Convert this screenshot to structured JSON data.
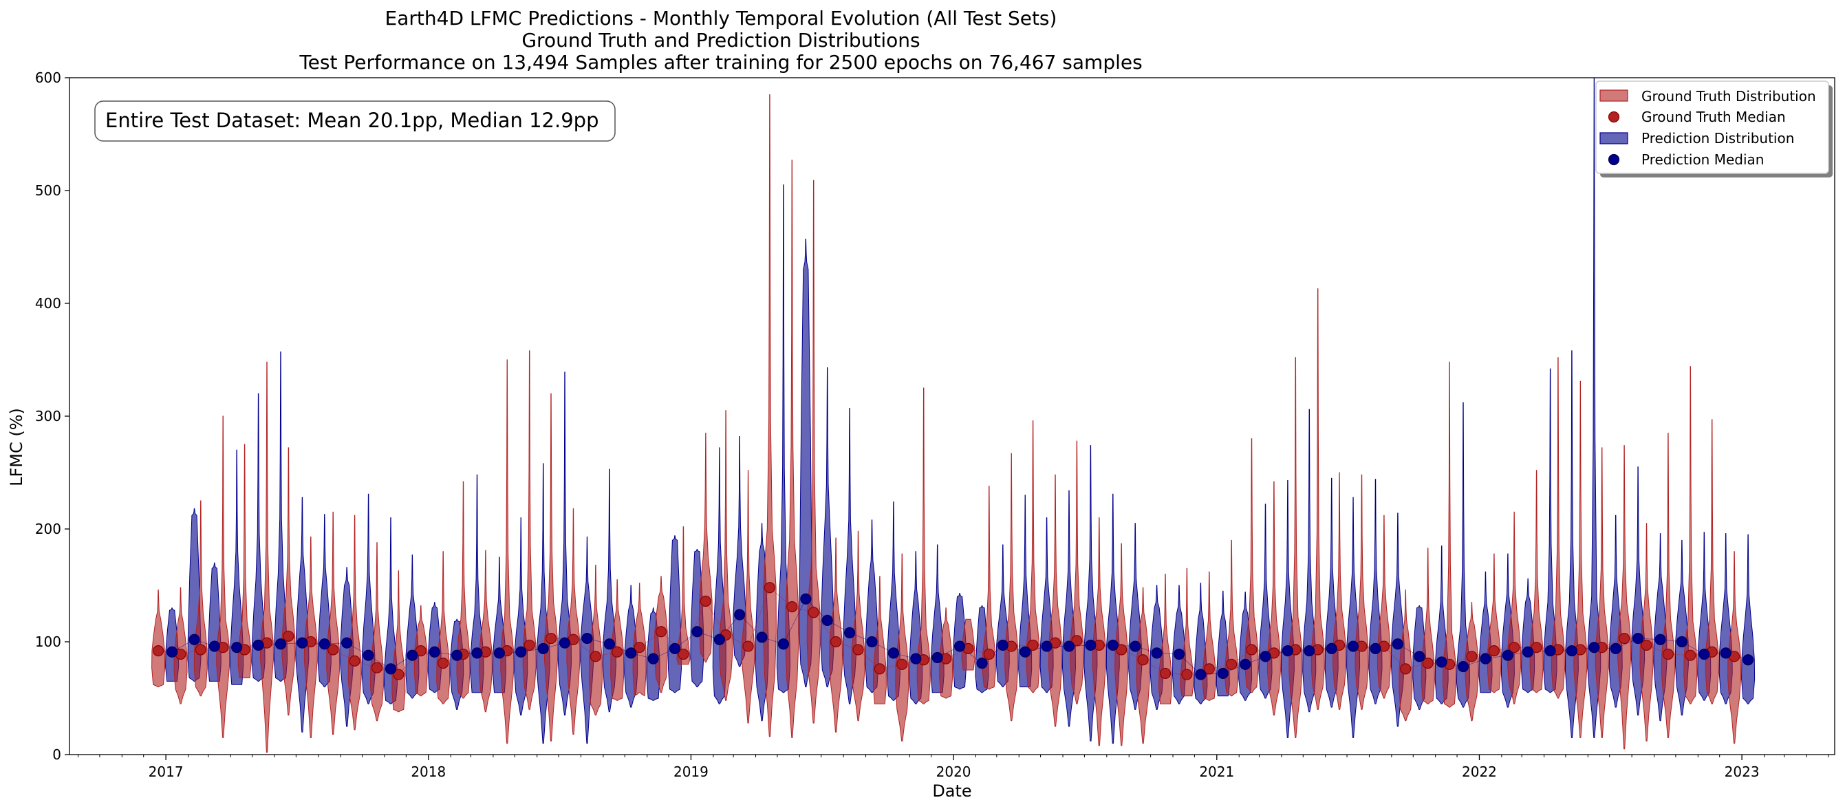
{
  "chart_data": {
    "type": "violin",
    "title": "Earth4D LFMC Predictions - Monthly Temporal Evolution (All Test Sets)",
    "subtitle": "Ground Truth and Prediction Distributions",
    "subtitle2": "Test Performance on 13,494 Samples after training for 2500 epochs on 76,467 samples",
    "xlabel": "Date",
    "ylabel": "LFMC (%)",
    "xlim": [
      "2016-08-20",
      "2023-05-10"
    ],
    "ylim": [
      0,
      600
    ],
    "yticks": [
      0,
      100,
      200,
      300,
      400,
      500,
      600
    ],
    "xticks": [
      "2017",
      "2018",
      "2019",
      "2020",
      "2021",
      "2022",
      "2023"
    ],
    "annotation": "Entire Test Dataset: Mean 20.1pp, Median 12.9pp",
    "legend_position": "top-right",
    "colors": {
      "ground_truth": "#b22222",
      "prediction": "#00008b"
    },
    "legend": [
      {
        "label": "Ground Truth Distribution",
        "kind": "patch",
        "series": "ground_truth"
      },
      {
        "label": "Ground Truth Median",
        "kind": "dot",
        "series": "ground_truth"
      },
      {
        "label": "Prediction Distribution",
        "kind": "patch",
        "series": "prediction"
      },
      {
        "label": "Prediction Median",
        "kind": "dot",
        "series": "prediction"
      }
    ],
    "months": [
      "2017-01",
      "2017-02",
      "2017-03",
      "2017-04",
      "2017-05",
      "2017-06",
      "2017-07",
      "2017-08",
      "2017-09",
      "2017-10",
      "2017-11",
      "2017-12",
      "2018-01",
      "2018-02",
      "2018-03",
      "2018-04",
      "2018-05",
      "2018-06",
      "2018-07",
      "2018-08",
      "2018-09",
      "2018-10",
      "2018-11",
      "2018-12",
      "2019-01",
      "2019-02",
      "2019-03",
      "2019-04",
      "2019-05",
      "2019-06",
      "2019-07",
      "2019-08",
      "2019-09",
      "2019-10",
      "2019-11",
      "2019-12",
      "2020-01",
      "2020-02",
      "2020-03",
      "2020-04",
      "2020-05",
      "2020-06",
      "2020-07",
      "2020-08",
      "2020-09",
      "2020-10",
      "2020-11",
      "2020-12",
      "2021-01",
      "2021-02",
      "2021-03",
      "2021-04",
      "2021-05",
      "2021-06",
      "2021-07",
      "2021-08",
      "2021-09",
      "2021-10",
      "2021-11",
      "2021-12",
      "2022-01",
      "2022-02",
      "2022-03",
      "2022-04",
      "2022-05",
      "2022-06",
      "2022-07",
      "2022-08",
      "2022-09",
      "2022-10",
      "2022-11",
      "2022-12",
      "2023-01"
    ],
    "ground_truth_median": [
      92,
      89,
      93,
      95,
      93,
      99,
      105,
      100,
      93,
      83,
      77,
      71,
      92,
      81,
      89,
      91,
      92,
      97,
      103,
      102,
      87,
      91,
      95,
      109,
      89,
      136,
      106,
      96,
      148,
      131,
      126,
      100,
      93,
      76,
      80,
      84,
      85,
      94,
      89,
      96,
      97,
      99,
      101,
      97,
      93,
      84,
      72,
      71,
      76,
      80,
      93,
      90,
      93,
      93,
      97,
      96,
      96,
      76,
      81,
      80,
      87,
      92,
      95,
      95,
      93,
      93,
      95,
      103,
      97,
      89,
      88,
      91,
      87
    ],
    "ground_truth_q1": [
      62,
      58,
      60,
      65,
      68,
      70,
      72,
      68,
      60,
      52,
      45,
      40,
      55,
      50,
      55,
      57,
      58,
      60,
      65,
      63,
      45,
      50,
      52,
      68,
      80,
      90,
      70,
      72,
      70,
      65,
      72,
      62,
      58,
      45,
      40,
      48,
      52,
      75,
      60,
      58,
      60,
      58,
      62,
      60,
      55,
      48,
      45,
      52,
      50,
      55,
      60,
      58,
      55,
      60,
      62,
      60,
      60,
      40,
      48,
      45,
      52,
      58,
      62,
      58,
      58,
      60,
      62,
      68,
      60,
      55,
      52,
      55,
      50
    ],
    "ground_truth_q3": [
      120,
      118,
      125,
      120,
      118,
      130,
      140,
      130,
      125,
      115,
      110,
      100,
      115,
      110,
      120,
      120,
      122,
      128,
      135,
      130,
      118,
      120,
      122,
      140,
      112,
      175,
      135,
      130,
      200,
      190,
      165,
      130,
      125,
      110,
      110,
      112,
      115,
      120,
      115,
      125,
      128,
      132,
      132,
      128,
      125,
      118,
      100,
      98,
      105,
      108,
      122,
      120,
      122,
      124,
      128,
      130,
      130,
      110,
      112,
      108,
      115,
      122,
      128,
      126,
      125,
      125,
      128,
      135,
      130,
      120,
      118,
      120,
      115
    ],
    "ground_truth_min": [
      60,
      45,
      52,
      15,
      68,
      2,
      35,
      15,
      18,
      22,
      30,
      38,
      52,
      45,
      50,
      38,
      10,
      40,
      12,
      18,
      35,
      48,
      55,
      55,
      80,
      82,
      48,
      28,
      16,
      15,
      28,
      20,
      30,
      45,
      12,
      45,
      50,
      75,
      58,
      30,
      55,
      25,
      45,
      8,
      8,
      10,
      45,
      52,
      48,
      52,
      55,
      35,
      15,
      40,
      40,
      40,
      50,
      30,
      45,
      42,
      30,
      55,
      45,
      55,
      50,
      15,
      15,
      5,
      12,
      15,
      45,
      45,
      10
    ],
    "ground_truth_max": [
      146,
      148,
      225,
      300,
      275,
      348,
      272,
      193,
      215,
      212,
      188,
      163,
      132,
      180,
      242,
      181,
      350,
      358,
      320,
      218,
      168,
      155,
      152,
      158,
      202,
      285,
      305,
      252,
      585,
      527,
      509,
      192,
      198,
      158,
      178,
      325,
      130,
      120,
      238,
      267,
      296,
      248,
      278,
      210,
      187,
      148,
      160,
      165,
      162,
      190,
      280,
      242,
      352,
      413,
      250,
      248,
      212,
      146,
      183,
      348,
      135,
      178,
      215,
      252,
      352,
      331,
      272,
      274,
      205,
      285,
      344,
      297,
      180
    ],
    "prediction_median": [
      91,
      102,
      96,
      95,
      97,
      98,
      99,
      98,
      99,
      88,
      76,
      88,
      91,
      88,
      90,
      90,
      91,
      94,
      99,
      103,
      98,
      90,
      85,
      94,
      109,
      102,
      124,
      104,
      98,
      138,
      119,
      108,
      100,
      90,
      85,
      86,
      96,
      81,
      97,
      91,
      96,
      96,
      97,
      97,
      96,
      90,
      89,
      71,
      72,
      80,
      87,
      92,
      92,
      94,
      96,
      94,
      98,
      87,
      82,
      78,
      85,
      88,
      91,
      92,
      92,
      95,
      94,
      103,
      102,
      100,
      89,
      90,
      84
    ],
    "prediction_q1": [
      65,
      68,
      65,
      62,
      68,
      68,
      70,
      65,
      65,
      55,
      48,
      55,
      58,
      55,
      55,
      55,
      55,
      60,
      62,
      65,
      60,
      55,
      50,
      58,
      65,
      52,
      88,
      60,
      58,
      80,
      75,
      70,
      60,
      52,
      50,
      55,
      60,
      58,
      65,
      60,
      60,
      58,
      60,
      60,
      58,
      55,
      52,
      50,
      52,
      55,
      58,
      58,
      55,
      58,
      60,
      58,
      60,
      50,
      50,
      50,
      55,
      55,
      58,
      58,
      58,
      60,
      60,
      65,
      62,
      60,
      55,
      55,
      50
    ],
    "prediction_q3": [
      128,
      212,
      165,
      150,
      155,
      160,
      160,
      150,
      150,
      138,
      115,
      130,
      130,
      118,
      125,
      125,
      125,
      130,
      138,
      140,
      135,
      128,
      125,
      190,
      180,
      160,
      175,
      180,
      170,
      430,
      205,
      175,
      160,
      140,
      135,
      130,
      140,
      130,
      130,
      135,
      140,
      140,
      140,
      138,
      140,
      130,
      125,
      120,
      118,
      125,
      132,
      135,
      135,
      140,
      140,
      138,
      140,
      130,
      120,
      115,
      125,
      130,
      135,
      135,
      135,
      140,
      140,
      145,
      145,
      140,
      130,
      130,
      125
    ],
    "prediction_min": [
      65,
      65,
      65,
      62,
      65,
      65,
      20,
      60,
      25,
      45,
      45,
      50,
      55,
      40,
      55,
      55,
      35,
      10,
      35,
      10,
      38,
      42,
      48,
      55,
      60,
      45,
      78,
      30,
      55,
      60,
      60,
      45,
      55,
      48,
      45,
      55,
      58,
      55,
      60,
      60,
      55,
      25,
      12,
      10,
      40,
      40,
      45,
      45,
      52,
      48,
      50,
      15,
      38,
      42,
      15,
      45,
      25,
      40,
      45,
      42,
      55,
      42,
      55,
      55,
      15,
      15,
      42,
      35,
      30,
      35,
      48,
      45,
      45
    ],
    "prediction_max": [
      130,
      218,
      170,
      270,
      320,
      357,
      228,
      213,
      166,
      231,
      210,
      177,
      135,
      120,
      248,
      175,
      210,
      258,
      339,
      193,
      253,
      150,
      130,
      194,
      182,
      272,
      282,
      205,
      505,
      457,
      343,
      307,
      208,
      224,
      180,
      186,
      143,
      132,
      186,
      230,
      210,
      234,
      274,
      231,
      205,
      150,
      150,
      152,
      145,
      144,
      222,
      243,
      306,
      245,
      228,
      244,
      214,
      132,
      185,
      312,
      162,
      178,
      156,
      342,
      358,
      700,
      212,
      255,
      196,
      190,
      197,
      196,
      195
    ]
  }
}
